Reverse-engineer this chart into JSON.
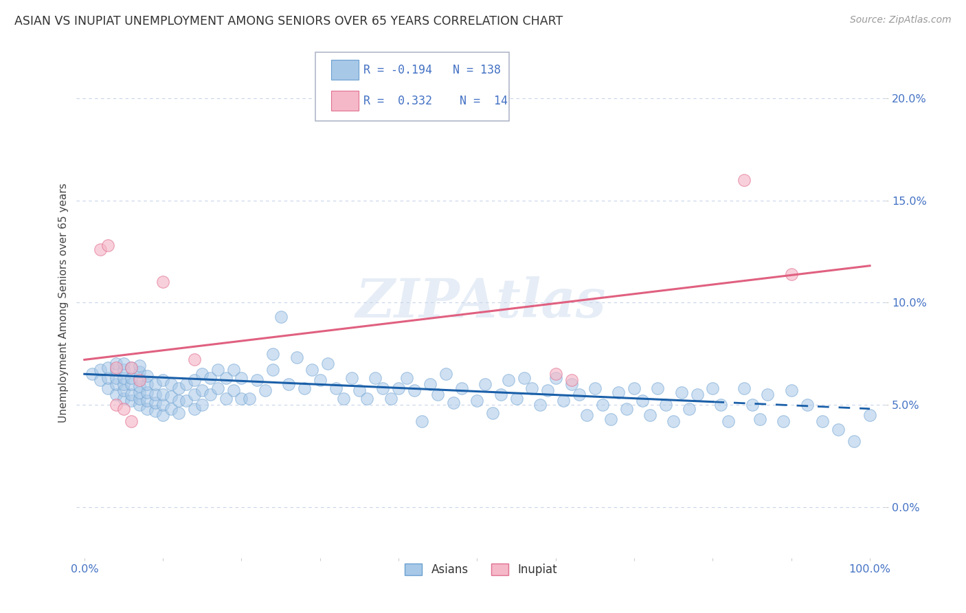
{
  "title": "ASIAN VS INUPIAT UNEMPLOYMENT AMONG SENIORS OVER 65 YEARS CORRELATION CHART",
  "source": "Source: ZipAtlas.com",
  "ylabel": "Unemployment Among Seniors over 65 years",
  "xlim": [
    -0.01,
    1.02
  ],
  "ylim": [
    -0.025,
    0.225
  ],
  "yticks": [
    0.0,
    0.05,
    0.1,
    0.15,
    0.2
  ],
  "ytick_labels": [
    "0.0%",
    "5.0%",
    "10.0%",
    "15.0%",
    "20.0%"
  ],
  "xticks": [
    0.0,
    0.1,
    0.2,
    0.3,
    0.4,
    0.5,
    0.6,
    0.7,
    0.8,
    0.9,
    1.0
  ],
  "xtick_labels": [
    "0.0%",
    "",
    "",
    "",
    "",
    "",
    "",
    "",
    "",
    "",
    "100.0%"
  ],
  "asian_color": "#a8c8e8",
  "asian_edge_color": "#6aa0d0",
  "inupiat_color": "#f5b8c8",
  "inupiat_edge_color": "#e07090",
  "asian_line_color": "#1a5fa8",
  "inupiat_line_color": "#e06080",
  "legend_R_asian": "-0.194",
  "legend_N_asian": "138",
  "legend_R_inupiat": "0.332",
  "legend_N_inupiat": "14",
  "watermark": "ZIPAtlas",
  "background_color": "#ffffff",
  "grid_color": "#c8d4e8",
  "asian_trend_x0": 0.0,
  "asian_trend_x1": 1.0,
  "asian_trend_y0": 0.065,
  "asian_trend_y1": 0.048,
  "asian_trend_solid_end": 0.8,
  "inupiat_trend_x0": 0.0,
  "inupiat_trend_x1": 1.0,
  "inupiat_trend_y0": 0.072,
  "inupiat_trend_y1": 0.118,
  "asian_x": [
    0.01,
    0.02,
    0.02,
    0.03,
    0.03,
    0.03,
    0.04,
    0.04,
    0.04,
    0.04,
    0.04,
    0.05,
    0.05,
    0.05,
    0.05,
    0.05,
    0.05,
    0.06,
    0.06,
    0.06,
    0.06,
    0.06,
    0.07,
    0.07,
    0.07,
    0.07,
    0.07,
    0.07,
    0.07,
    0.08,
    0.08,
    0.08,
    0.08,
    0.08,
    0.09,
    0.09,
    0.09,
    0.09,
    0.1,
    0.1,
    0.1,
    0.1,
    0.11,
    0.11,
    0.11,
    0.12,
    0.12,
    0.12,
    0.13,
    0.13,
    0.14,
    0.14,
    0.14,
    0.15,
    0.15,
    0.15,
    0.16,
    0.16,
    0.17,
    0.17,
    0.18,
    0.18,
    0.19,
    0.19,
    0.2,
    0.2,
    0.21,
    0.22,
    0.23,
    0.24,
    0.24,
    0.25,
    0.26,
    0.27,
    0.28,
    0.29,
    0.3,
    0.31,
    0.32,
    0.33,
    0.34,
    0.35,
    0.36,
    0.37,
    0.38,
    0.39,
    0.4,
    0.41,
    0.42,
    0.43,
    0.44,
    0.45,
    0.46,
    0.47,
    0.48,
    0.5,
    0.51,
    0.52,
    0.53,
    0.54,
    0.55,
    0.56,
    0.57,
    0.58,
    0.59,
    0.6,
    0.61,
    0.62,
    0.63,
    0.64,
    0.65,
    0.66,
    0.67,
    0.68,
    0.69,
    0.7,
    0.71,
    0.72,
    0.73,
    0.74,
    0.75,
    0.76,
    0.77,
    0.78,
    0.8,
    0.81,
    0.82,
    0.84,
    0.85,
    0.86,
    0.87,
    0.89,
    0.9,
    0.92,
    0.94,
    0.96,
    0.98,
    1.0
  ],
  "asian_y": [
    0.065,
    0.062,
    0.067,
    0.058,
    0.063,
    0.068,
    0.055,
    0.06,
    0.063,
    0.067,
    0.07,
    0.053,
    0.057,
    0.06,
    0.063,
    0.067,
    0.07,
    0.052,
    0.055,
    0.06,
    0.063,
    0.068,
    0.05,
    0.053,
    0.056,
    0.059,
    0.063,
    0.066,
    0.069,
    0.048,
    0.052,
    0.056,
    0.06,
    0.064,
    0.047,
    0.051,
    0.055,
    0.06,
    0.045,
    0.05,
    0.055,
    0.062,
    0.048,
    0.054,
    0.06,
    0.046,
    0.052,
    0.058,
    0.052,
    0.06,
    0.048,
    0.055,
    0.062,
    0.05,
    0.057,
    0.065,
    0.055,
    0.063,
    0.058,
    0.067,
    0.053,
    0.063,
    0.057,
    0.067,
    0.053,
    0.063,
    0.053,
    0.062,
    0.057,
    0.067,
    0.075,
    0.093,
    0.06,
    0.073,
    0.058,
    0.067,
    0.062,
    0.07,
    0.058,
    0.053,
    0.063,
    0.057,
    0.053,
    0.063,
    0.058,
    0.053,
    0.058,
    0.063,
    0.057,
    0.042,
    0.06,
    0.055,
    0.065,
    0.051,
    0.058,
    0.052,
    0.06,
    0.046,
    0.055,
    0.062,
    0.053,
    0.063,
    0.058,
    0.05,
    0.057,
    0.063,
    0.052,
    0.06,
    0.055,
    0.045,
    0.058,
    0.05,
    0.043,
    0.056,
    0.048,
    0.058,
    0.052,
    0.045,
    0.058,
    0.05,
    0.042,
    0.056,
    0.048,
    0.055,
    0.058,
    0.05,
    0.042,
    0.058,
    0.05,
    0.043,
    0.055,
    0.042,
    0.057,
    0.05,
    0.042,
    0.038,
    0.032,
    0.045
  ],
  "inupiat_x": [
    0.02,
    0.03,
    0.04,
    0.04,
    0.05,
    0.06,
    0.06,
    0.07,
    0.1,
    0.14,
    0.6,
    0.62,
    0.84,
    0.9
  ],
  "inupiat_y": [
    0.126,
    0.128,
    0.05,
    0.068,
    0.048,
    0.042,
    0.068,
    0.062,
    0.11,
    0.072,
    0.065,
    0.062,
    0.16,
    0.114
  ]
}
